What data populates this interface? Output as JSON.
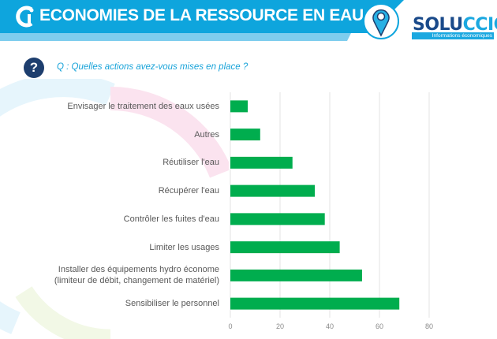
{
  "header": {
    "title": "ECONOMIES DE LA RESSOURCE EN EAU",
    "brand_color": "#0ea5dd",
    "location_icon": "map-pin-icon",
    "logo": {
      "part1": "SOLU",
      "part2": "CCIO",
      "tagline": "Informations économiques"
    }
  },
  "question": {
    "icon": "question-mark-icon",
    "text": "Q :  Quelles actions avez-vous mises en place ?"
  },
  "chart_data": {
    "type": "bar",
    "orientation": "horizontal",
    "categories": [
      "Envisager le traitement des eaux usées",
      "Autres",
      "Réutiliser l'eau",
      "Récupérer l'eau",
      "Contrôler les fuites d'eau",
      "Limiter les usages",
      "Installer des équipements hydro économe\n(limiteur de débit, changement de matériel)",
      "Sensibiliser le personnel"
    ],
    "values": [
      7,
      12,
      25,
      34,
      38,
      44,
      53,
      68
    ],
    "xlim": [
      0,
      80
    ],
    "xticks": [
      "0",
      "20",
      "40",
      "60",
      "80"
    ],
    "grid": true,
    "bar_color": "#00ad4e"
  }
}
